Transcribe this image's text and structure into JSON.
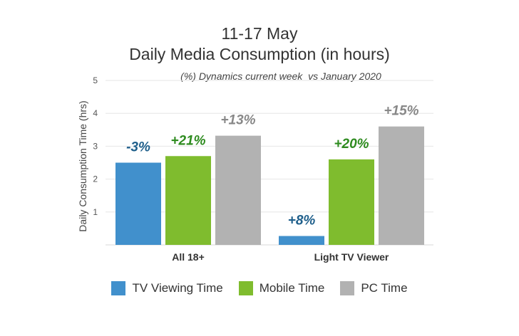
{
  "chart_data": {
    "type": "bar",
    "title_lines": [
      "11-17 May",
      "Daily Media Consumption (in hours)"
    ],
    "subtitle": "(%) Dynamics current week  vs January 2020",
    "ylabel": "Daily Consumption Time (hrs)",
    "xlabel": "",
    "ylim": [
      0,
      5
    ],
    "yticks": [
      1,
      2,
      3,
      4,
      5
    ],
    "grid": true,
    "legend_position": "bottom",
    "categories": [
      "All 18+",
      "Light TV Viewer"
    ],
    "series": [
      {
        "name": "TV Viewing Time",
        "color": "#4190cc",
        "values": [
          2.5,
          0.27
        ],
        "labels": [
          "-3%",
          "+8%"
        ],
        "label_color": "#1f5f8b"
      },
      {
        "name": "Mobile Time",
        "color": "#7fbc2e",
        "values": [
          2.7,
          2.6
        ],
        "labels": [
          "+21%",
          "+20%"
        ],
        "label_color": "#2e8b1f"
      },
      {
        "name": "PC Time",
        "color": "#b2b2b2",
        "values": [
          3.32,
          3.6
        ],
        "labels": [
          "+13%",
          "+15%"
        ],
        "label_color": "#888888"
      }
    ]
  }
}
